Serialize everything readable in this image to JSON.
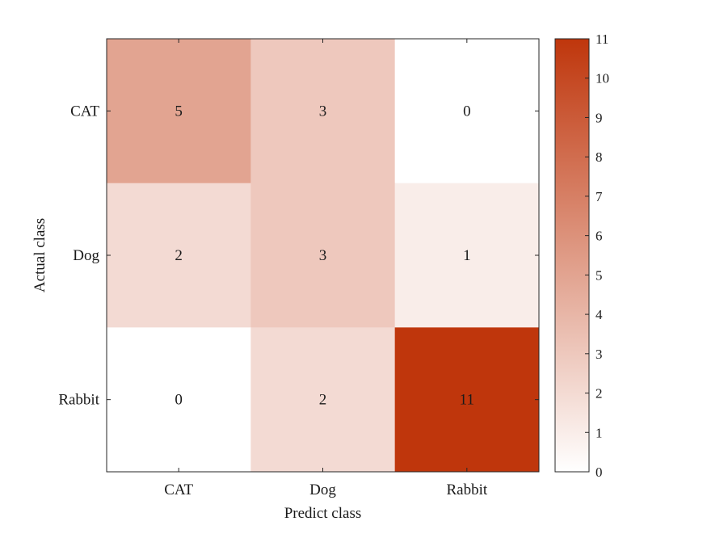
{
  "chart_data": {
    "type": "heatmap",
    "title": "",
    "xlabel": "Predict class",
    "ylabel": "Actual class",
    "x_categories": [
      "CAT",
      "Dog",
      "Rabbit"
    ],
    "y_categories": [
      "CAT",
      "Dog",
      "Rabbit"
    ],
    "values": [
      [
        5,
        3,
        0
      ],
      [
        2,
        3,
        1
      ],
      [
        0,
        2,
        11
      ]
    ],
    "colorbar": {
      "min": 0,
      "max": 11,
      "ticks": [
        "0",
        "1",
        "2",
        "3",
        "4",
        "5",
        "6",
        "7",
        "8",
        "9",
        "10",
        "11"
      ],
      "color_low": "#ffffff",
      "color_high": "#bf360c"
    }
  }
}
